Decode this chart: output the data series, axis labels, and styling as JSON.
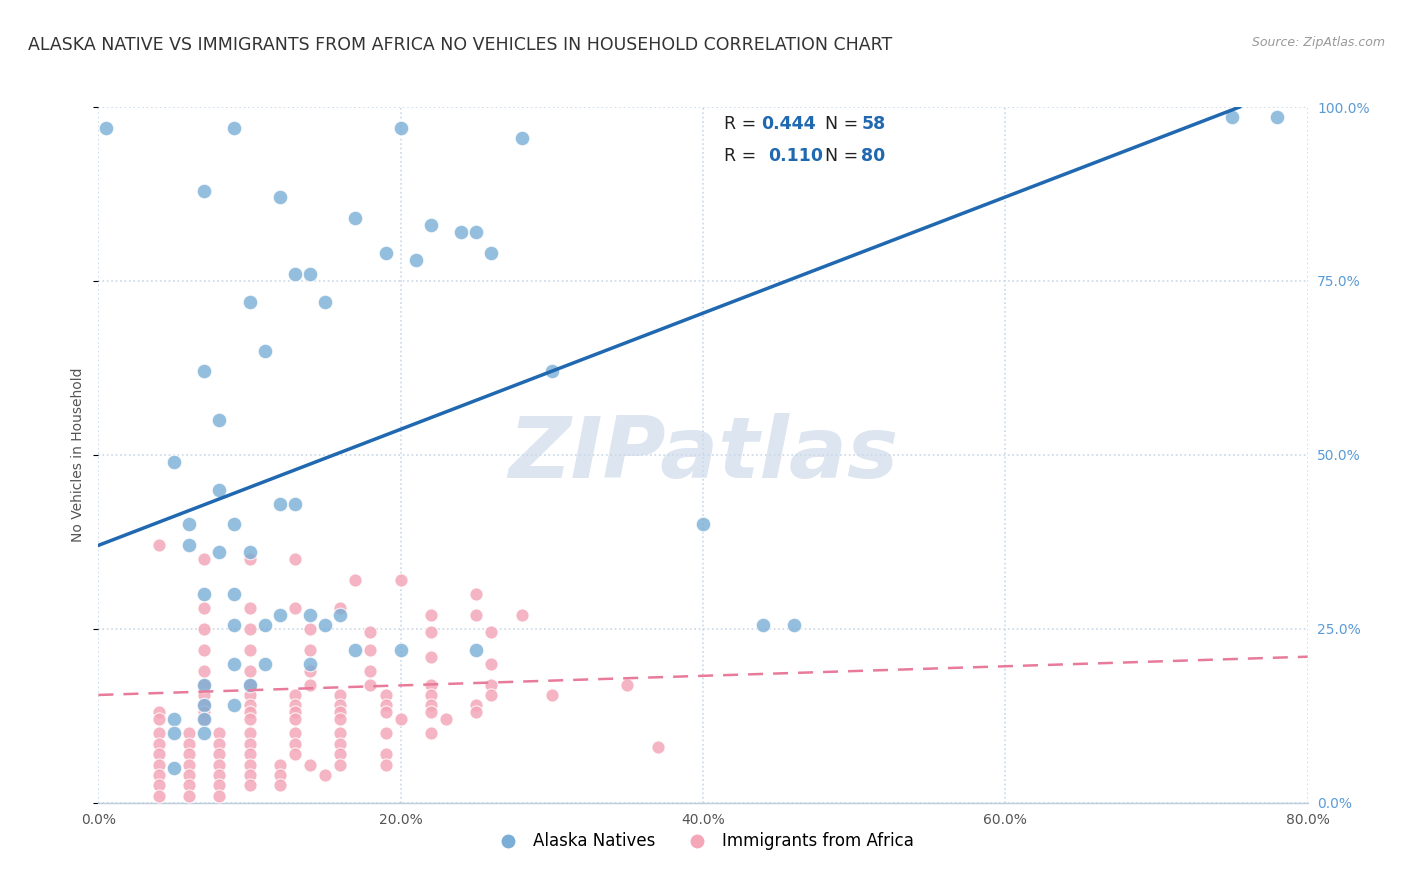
{
  "title": "ALASKA NATIVE VS IMMIGRANTS FROM AFRICA NO VEHICLES IN HOUSEHOLD CORRELATION CHART",
  "source": "Source: ZipAtlas.com",
  "ylabel": "No Vehicles in Household",
  "xlim": [
    0.0,
    0.8
  ],
  "ylim": [
    0.0,
    1.0
  ],
  "xtick_positions": [
    0.0,
    0.2,
    0.4,
    0.6,
    0.8
  ],
  "ytick_positions": [
    0.0,
    0.25,
    0.5,
    0.75,
    1.0
  ],
  "ytick_labels_right": [
    "0.0%",
    "25.0%",
    "50.0%",
    "75.0%",
    "100.0%"
  ],
  "blue_color": "#7aaed6",
  "pink_color": "#f4a7b9",
  "blue_line_color": "#2068b0",
  "pink_line_color": "#e87a9a",
  "right_axis_color": "#5b9bd5",
  "watermark": "ZIPatlas",
  "background_color": "#ffffff",
  "blue_scatter": [
    [
      0.005,
      0.97
    ],
    [
      0.09,
      0.97
    ],
    [
      0.2,
      0.97
    ],
    [
      0.28,
      0.955
    ],
    [
      0.07,
      0.88
    ],
    [
      0.12,
      0.87
    ],
    [
      0.17,
      0.84
    ],
    [
      0.22,
      0.83
    ],
    [
      0.24,
      0.82
    ],
    [
      0.25,
      0.82
    ],
    [
      0.19,
      0.79
    ],
    [
      0.26,
      0.79
    ],
    [
      0.14,
      0.76
    ],
    [
      0.13,
      0.76
    ],
    [
      0.21,
      0.78
    ],
    [
      0.1,
      0.72
    ],
    [
      0.15,
      0.72
    ],
    [
      0.11,
      0.65
    ],
    [
      0.07,
      0.62
    ],
    [
      0.3,
      0.62
    ],
    [
      0.08,
      0.55
    ],
    [
      0.05,
      0.49
    ],
    [
      0.08,
      0.45
    ],
    [
      0.12,
      0.43
    ],
    [
      0.13,
      0.43
    ],
    [
      0.06,
      0.4
    ],
    [
      0.09,
      0.4
    ],
    [
      0.06,
      0.37
    ],
    [
      0.08,
      0.36
    ],
    [
      0.1,
      0.36
    ],
    [
      0.4,
      0.4
    ],
    [
      0.07,
      0.3
    ],
    [
      0.09,
      0.3
    ],
    [
      0.12,
      0.27
    ],
    [
      0.14,
      0.27
    ],
    [
      0.16,
      0.27
    ],
    [
      0.09,
      0.255
    ],
    [
      0.11,
      0.255
    ],
    [
      0.15,
      0.255
    ],
    [
      0.44,
      0.255
    ],
    [
      0.46,
      0.255
    ],
    [
      0.17,
      0.22
    ],
    [
      0.2,
      0.22
    ],
    [
      0.25,
      0.22
    ],
    [
      0.09,
      0.2
    ],
    [
      0.11,
      0.2
    ],
    [
      0.14,
      0.2
    ],
    [
      0.07,
      0.17
    ],
    [
      0.1,
      0.17
    ],
    [
      0.07,
      0.14
    ],
    [
      0.09,
      0.14
    ],
    [
      0.05,
      0.12
    ],
    [
      0.07,
      0.12
    ],
    [
      0.05,
      0.1
    ],
    [
      0.07,
      0.1
    ],
    [
      0.05,
      0.05
    ],
    [
      0.75,
      0.985
    ],
    [
      0.78,
      0.985
    ]
  ],
  "pink_scatter": [
    [
      0.04,
      0.37
    ],
    [
      0.07,
      0.35
    ],
    [
      0.1,
      0.35
    ],
    [
      0.13,
      0.35
    ],
    [
      0.17,
      0.32
    ],
    [
      0.2,
      0.32
    ],
    [
      0.25,
      0.3
    ],
    [
      0.07,
      0.28
    ],
    [
      0.1,
      0.28
    ],
    [
      0.13,
      0.28
    ],
    [
      0.16,
      0.28
    ],
    [
      0.22,
      0.27
    ],
    [
      0.25,
      0.27
    ],
    [
      0.28,
      0.27
    ],
    [
      0.07,
      0.25
    ],
    [
      0.1,
      0.25
    ],
    [
      0.14,
      0.25
    ],
    [
      0.18,
      0.245
    ],
    [
      0.22,
      0.245
    ],
    [
      0.26,
      0.245
    ],
    [
      0.07,
      0.22
    ],
    [
      0.1,
      0.22
    ],
    [
      0.14,
      0.22
    ],
    [
      0.18,
      0.22
    ],
    [
      0.22,
      0.21
    ],
    [
      0.26,
      0.2
    ],
    [
      0.07,
      0.19
    ],
    [
      0.1,
      0.19
    ],
    [
      0.14,
      0.19
    ],
    [
      0.18,
      0.19
    ],
    [
      0.07,
      0.17
    ],
    [
      0.1,
      0.17
    ],
    [
      0.14,
      0.17
    ],
    [
      0.18,
      0.17
    ],
    [
      0.22,
      0.17
    ],
    [
      0.26,
      0.17
    ],
    [
      0.35,
      0.17
    ],
    [
      0.07,
      0.155
    ],
    [
      0.1,
      0.155
    ],
    [
      0.13,
      0.155
    ],
    [
      0.16,
      0.155
    ],
    [
      0.19,
      0.155
    ],
    [
      0.22,
      0.155
    ],
    [
      0.26,
      0.155
    ],
    [
      0.3,
      0.155
    ],
    [
      0.07,
      0.14
    ],
    [
      0.1,
      0.14
    ],
    [
      0.13,
      0.14
    ],
    [
      0.16,
      0.14
    ],
    [
      0.19,
      0.14
    ],
    [
      0.22,
      0.14
    ],
    [
      0.25,
      0.14
    ],
    [
      0.04,
      0.13
    ],
    [
      0.07,
      0.13
    ],
    [
      0.1,
      0.13
    ],
    [
      0.13,
      0.13
    ],
    [
      0.16,
      0.13
    ],
    [
      0.19,
      0.13
    ],
    [
      0.22,
      0.13
    ],
    [
      0.25,
      0.13
    ],
    [
      0.04,
      0.12
    ],
    [
      0.07,
      0.12
    ],
    [
      0.1,
      0.12
    ],
    [
      0.13,
      0.12
    ],
    [
      0.16,
      0.12
    ],
    [
      0.2,
      0.12
    ],
    [
      0.23,
      0.12
    ],
    [
      0.04,
      0.1
    ],
    [
      0.06,
      0.1
    ],
    [
      0.08,
      0.1
    ],
    [
      0.1,
      0.1
    ],
    [
      0.13,
      0.1
    ],
    [
      0.16,
      0.1
    ],
    [
      0.19,
      0.1
    ],
    [
      0.22,
      0.1
    ],
    [
      0.04,
      0.085
    ],
    [
      0.06,
      0.085
    ],
    [
      0.08,
      0.085
    ],
    [
      0.1,
      0.085
    ],
    [
      0.13,
      0.085
    ],
    [
      0.16,
      0.085
    ],
    [
      0.04,
      0.07
    ],
    [
      0.06,
      0.07
    ],
    [
      0.08,
      0.07
    ],
    [
      0.1,
      0.07
    ],
    [
      0.13,
      0.07
    ],
    [
      0.16,
      0.07
    ],
    [
      0.19,
      0.07
    ],
    [
      0.04,
      0.055
    ],
    [
      0.06,
      0.055
    ],
    [
      0.08,
      0.055
    ],
    [
      0.1,
      0.055
    ],
    [
      0.12,
      0.055
    ],
    [
      0.14,
      0.055
    ],
    [
      0.16,
      0.055
    ],
    [
      0.19,
      0.055
    ],
    [
      0.04,
      0.04
    ],
    [
      0.06,
      0.04
    ],
    [
      0.08,
      0.04
    ],
    [
      0.1,
      0.04
    ],
    [
      0.12,
      0.04
    ],
    [
      0.15,
      0.04
    ],
    [
      0.04,
      0.025
    ],
    [
      0.06,
      0.025
    ],
    [
      0.08,
      0.025
    ],
    [
      0.1,
      0.025
    ],
    [
      0.12,
      0.025
    ],
    [
      0.04,
      0.01
    ],
    [
      0.06,
      0.01
    ],
    [
      0.08,
      0.01
    ],
    [
      0.37,
      0.08
    ]
  ],
  "blue_line": {
    "x0": 0.0,
    "y0": 0.37,
    "x1": 0.755,
    "y1": 1.0
  },
  "pink_line": {
    "x0": 0.0,
    "y0": 0.155,
    "x1": 0.8,
    "y1": 0.21
  },
  "grid_color": "#c8d8e8",
  "title_fontsize": 12.5,
  "axis_fontsize": 10,
  "tick_fontsize": 10
}
